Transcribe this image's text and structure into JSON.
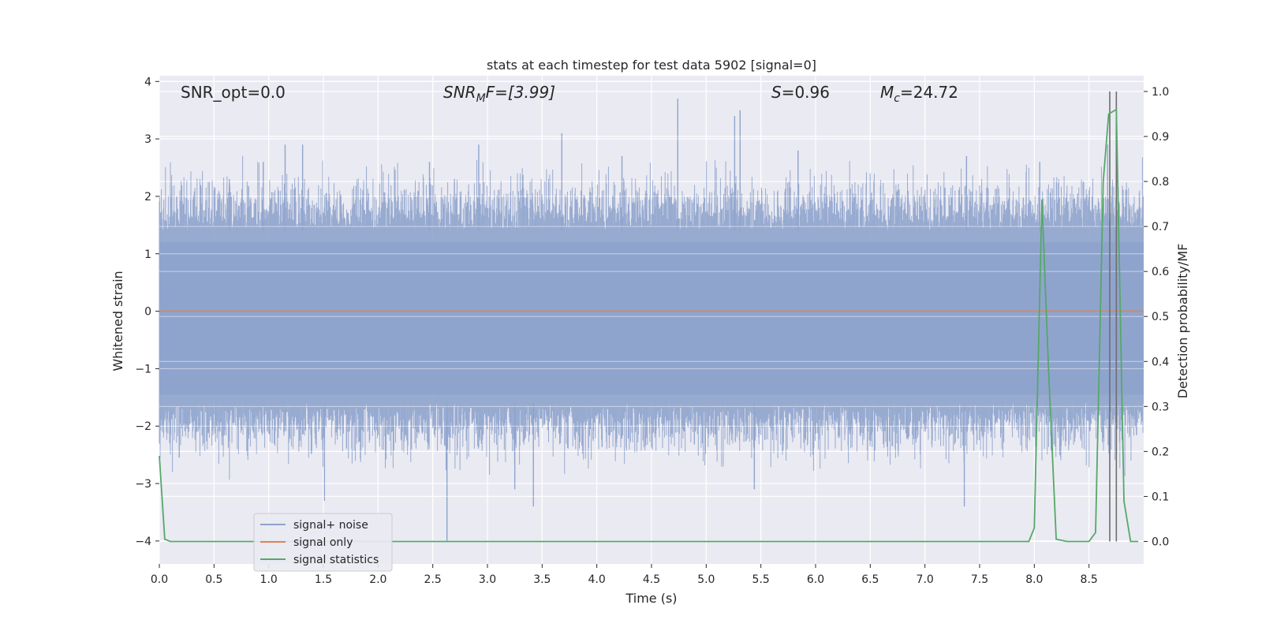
{
  "chart_data": {
    "type": "line",
    "title": "stats at each timestep for test data 5902 [signal=0]",
    "xlabel": "Time (s)",
    "ylabel": "Whitened strain",
    "y2label": "Detection probability/MF",
    "xlim": [
      0.0,
      9.0
    ],
    "ylim": [
      -4.4,
      4.1
    ],
    "y2lim": [
      -0.05,
      1.035
    ],
    "xticks": [
      "0.0",
      "0.5",
      "1.0",
      "1.5",
      "2.0",
      "2.5",
      "3.0",
      "3.5",
      "4.0",
      "4.5",
      "5.0",
      "5.5",
      "6.0",
      "6.5",
      "7.0",
      "7.5",
      "8.0",
      "8.5"
    ],
    "yticks": [
      "4",
      "3",
      "2",
      "1",
      "0",
      "−1",
      "−2",
      "−3",
      "−4"
    ],
    "y2ticks": [
      "1.0",
      "0.9",
      "0.8",
      "0.7",
      "0.6",
      "0.5",
      "0.4",
      "0.3",
      "0.2",
      "0.1",
      "0.0"
    ],
    "grid": true,
    "legend_position": "lower-left",
    "annotations": {
      "snr_opt": "SNR_opt=0.0",
      "snr_mf_base": "SNR",
      "snr_mf_sub": "M",
      "snr_mf_rest": "F=[3.99]",
      "s_base": "S",
      "s_rest": "=0.96",
      "mc_base": "M",
      "mc_sub": "c",
      "mc_rest": "=24.72"
    },
    "series": [
      {
        "name": "signal+ noise",
        "color": "#8ea3cc",
        "description_range": "noise between approximately -4.0 and 3.7",
        "envelope": {
          "typical_max": 1.4,
          "typical_min": -1.6,
          "peaks": [
            {
              "x": 0.64,
              "y": 2.3
            },
            {
              "x": 0.95,
              "y": 2.6
            },
            {
              "x": 1.15,
              "y": 2.9
            },
            {
              "x": 1.31,
              "y": 2.9
            },
            {
              "x": 1.51,
              "y": -3.3
            },
            {
              "x": 2.47,
              "y": 2.6
            },
            {
              "x": 2.63,
              "y": -4.0
            },
            {
              "x": 2.92,
              "y": 2.9
            },
            {
              "x": 3.25,
              "y": -3.1
            },
            {
              "x": 3.42,
              "y": -3.4
            },
            {
              "x": 3.68,
              "y": 3.1
            },
            {
              "x": 4.74,
              "y": 3.7
            },
            {
              "x": 4.23,
              "y": 2.7
            },
            {
              "x": 5.26,
              "y": 3.4
            },
            {
              "x": 5.31,
              "y": 3.5
            },
            {
              "x": 5.44,
              "y": -3.1
            },
            {
              "x": 5.84,
              "y": 2.8
            },
            {
              "x": 7.36,
              "y": -3.4
            },
            {
              "x": 7.38,
              "y": 2.7
            },
            {
              "x": 8.05,
              "y": 2.6
            },
            {
              "x": 8.67,
              "y": 2.9
            }
          ]
        }
      },
      {
        "name": "signal only",
        "color": "#dd8452",
        "x": [
          0.0,
          9.0
        ],
        "y": [
          0.0,
          0.0
        ]
      },
      {
        "name": "signal statistics",
        "color": "#55a868",
        "axis": "right",
        "x": [
          0.0,
          0.05,
          0.1,
          0.15,
          7.95,
          8.0,
          8.07,
          8.13,
          8.2,
          8.3,
          8.5,
          8.56,
          8.63,
          8.68,
          8.75,
          8.82,
          8.88,
          8.95
        ],
        "y": [
          0.19,
          0.005,
          0.0,
          0.0,
          0.0,
          0.03,
          0.76,
          0.38,
          0.005,
          0.0,
          0.0,
          0.02,
          0.8,
          0.95,
          0.96,
          0.09,
          0.0,
          0.0
        ]
      }
    ],
    "vlines": [
      8.69,
      8.75
    ],
    "vline_color": "#6e6e6e"
  }
}
